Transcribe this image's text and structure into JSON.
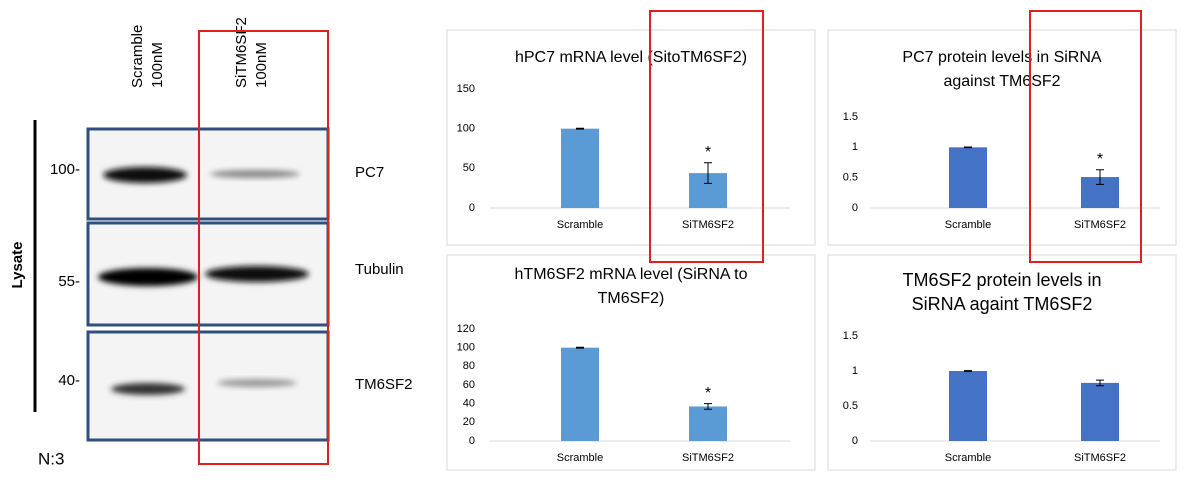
{
  "blot": {
    "lanes": [
      [
        "Scramble",
        "100nM"
      ],
      [
        "SiTM6SF2",
        "100nM"
      ]
    ],
    "side_label": "Lysate",
    "markers": [
      "100-",
      "55-",
      "40-"
    ],
    "proteins": [
      "PC7",
      "Tubulin",
      "TM6SF2"
    ],
    "n": "N:3"
  },
  "chart_data": [
    {
      "type": "bar",
      "title": [
        "hPC7 mRNA level (SitoTM6SF2)"
      ],
      "categories": [
        "Scramble",
        "SiTM6SF2"
      ],
      "values": [
        100,
        44
      ],
      "errors": [
        0.5,
        13
      ],
      "significance": [
        null,
        "*"
      ],
      "color": "#5b9bd5",
      "ylim": [
        0,
        150
      ],
      "yticks": [
        0,
        50,
        100,
        150
      ],
      "grid": false
    },
    {
      "type": "bar",
      "title": [
        "PC7 protein levels in SiRNA",
        "against TM6SF2"
      ],
      "categories": [
        "Scramble",
        "SiTM6SF2"
      ],
      "values": [
        1,
        0.51
      ],
      "errors": [
        0.005,
        0.12
      ],
      "significance": [
        null,
        "*"
      ],
      "color": "#4472c4",
      "ylim": [
        0,
        1.5
      ],
      "yticks": [
        0,
        0.5,
        1,
        1.5
      ],
      "grid": false
    },
    {
      "type": "bar",
      "title": [
        "hTM6SF2 mRNA level (SiRNA to",
        "TM6SF2)"
      ],
      "categories": [
        "Scramble",
        "SiTM6SF2"
      ],
      "values": [
        100,
        37
      ],
      "errors": [
        0.5,
        3
      ],
      "significance": [
        null,
        "*"
      ],
      "color": "#5b9bd5",
      "ylim": [
        0,
        120
      ],
      "yticks": [
        0,
        20,
        40,
        60,
        80,
        100,
        120
      ],
      "grid": false
    },
    {
      "type": "bar",
      "title": [
        "TM6SF2 protein levels in",
        "SiRNA againt TM6SF2"
      ],
      "categories": [
        "Scramble",
        "SiTM6SF2"
      ],
      "values": [
        1,
        0.83
      ],
      "errors": [
        0.005,
        0.04
      ],
      "significance": [
        null,
        null
      ],
      "color": "#4472c4",
      "ylim": [
        0,
        1.5
      ],
      "yticks": [
        0,
        0.5,
        1,
        1.5
      ],
      "grid": false
    }
  ]
}
